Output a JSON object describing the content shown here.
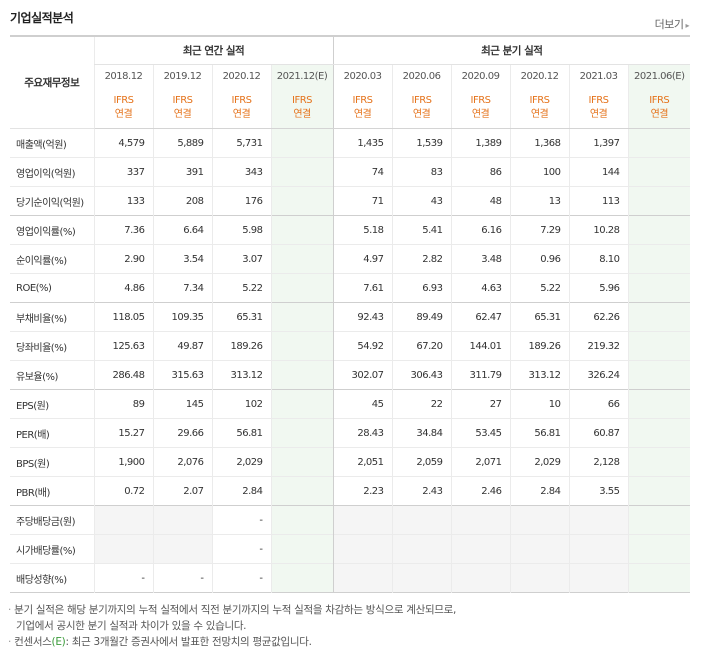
{
  "header": {
    "title": "기업실적분석",
    "more_label": "더보기"
  },
  "table": {
    "row_header_label": "주요재무정보",
    "group_annual": "최근 연간 실적",
    "group_quarter": "최근 분기 실적",
    "annual_periods": [
      "2018.12",
      "2019.12",
      "2020.12",
      "2021.12(E)"
    ],
    "quarter_periods": [
      "2020.03",
      "2020.06",
      "2020.09",
      "2020.12",
      "2021.03",
      "2021.06(E)"
    ],
    "ifrs_top": "IFRS",
    "ifrs_bottom": "연결",
    "rows": [
      {
        "label": "매출액(억원)",
        "annual": [
          "4,579",
          "5,889",
          "5,731",
          ""
        ],
        "quarter": [
          "1,435",
          "1,539",
          "1,389",
          "1,368",
          "1,397",
          ""
        ]
      },
      {
        "label": "영업이익(억원)",
        "annual": [
          "337",
          "391",
          "343",
          ""
        ],
        "quarter": [
          "74",
          "83",
          "86",
          "100",
          "144",
          ""
        ]
      },
      {
        "label": "당기순이익(억원)",
        "annual": [
          "133",
          "208",
          "176",
          ""
        ],
        "quarter": [
          "71",
          "43",
          "48",
          "13",
          "113",
          ""
        ]
      },
      {
        "label": "영업이익률(%)",
        "annual": [
          "7.36",
          "6.64",
          "5.98",
          ""
        ],
        "quarter": [
          "5.18",
          "5.41",
          "6.16",
          "7.29",
          "10.28",
          ""
        ]
      },
      {
        "label": "순이익률(%)",
        "annual": [
          "2.90",
          "3.54",
          "3.07",
          ""
        ],
        "quarter": [
          "4.97",
          "2.82",
          "3.48",
          "0.96",
          "8.10",
          ""
        ]
      },
      {
        "label": "ROE(%)",
        "annual": [
          "4.86",
          "7.34",
          "5.22",
          ""
        ],
        "quarter": [
          "7.61",
          "6.93",
          "4.63",
          "5.22",
          "5.96",
          ""
        ]
      },
      {
        "label": "부채비율(%)",
        "annual": [
          "118.05",
          "109.35",
          "65.31",
          ""
        ],
        "quarter": [
          "92.43",
          "89.49",
          "62.47",
          "65.31",
          "62.26",
          ""
        ]
      },
      {
        "label": "당좌비율(%)",
        "annual": [
          "125.63",
          "49.87",
          "189.26",
          ""
        ],
        "quarter": [
          "54.92",
          "67.20",
          "144.01",
          "189.26",
          "219.32",
          ""
        ]
      },
      {
        "label": "유보율(%)",
        "annual": [
          "286.48",
          "315.63",
          "313.12",
          ""
        ],
        "quarter": [
          "302.07",
          "306.43",
          "311.79",
          "313.12",
          "326.24",
          ""
        ]
      },
      {
        "label": "EPS(원)",
        "annual": [
          "89",
          "145",
          "102",
          ""
        ],
        "quarter": [
          "45",
          "22",
          "27",
          "10",
          "66",
          ""
        ]
      },
      {
        "label": "PER(배)",
        "annual": [
          "15.27",
          "29.66",
          "56.81",
          ""
        ],
        "quarter": [
          "28.43",
          "34.84",
          "53.45",
          "56.81",
          "60.87",
          ""
        ]
      },
      {
        "label": "BPS(원)",
        "annual": [
          "1,900",
          "2,076",
          "2,029",
          ""
        ],
        "quarter": [
          "2,051",
          "2,059",
          "2,071",
          "2,029",
          "2,128",
          ""
        ]
      },
      {
        "label": "PBR(배)",
        "annual": [
          "0.72",
          "2.07",
          "2.84",
          ""
        ],
        "quarter": [
          "2.23",
          "2.43",
          "2.46",
          "2.84",
          "3.55",
          ""
        ]
      },
      {
        "label": "주당배당금(원)",
        "annual": [
          "",
          "",
          "-",
          ""
        ],
        "quarter": [
          "",
          "",
          "",
          "",
          "",
          ""
        ]
      },
      {
        "label": "시가배당률(%)",
        "annual": [
          "",
          "",
          "-",
          ""
        ],
        "quarter": [
          "",
          "",
          "",
          "",
          "",
          ""
        ]
      },
      {
        "label": "배당성향(%)",
        "annual": [
          "-",
          "-",
          "-",
          ""
        ],
        "quarter": [
          "",
          "",
          "",
          "",
          "",
          ""
        ]
      }
    ]
  },
  "notes": {
    "note1_line1": "분기 실적은 해당 분기까지의 누적 실적에서 직전 분기까지의 누적 실적을 차감하는 방식으로 계산되므로,",
    "note1_line2": "기업에서 공시한 분기 실적과 차이가 있을 수 있습니다.",
    "note2_prefix": "컨센서스",
    "note2_mark": "(E)",
    "note2_text": ": 최근 3개월간 증권사에서 발표한 전망치의 평균값입니다."
  },
  "colors": {
    "ifrs": "#e5731b",
    "estimate_bg": "#f1f8f1",
    "empty_bg": "#f5f5f5",
    "estimate_mark": "#3b9b3b"
  }
}
